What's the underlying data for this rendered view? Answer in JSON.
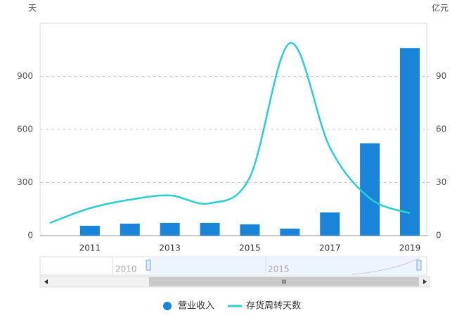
{
  "chart_data": {
    "type": "bar-line",
    "y_label": "天",
    "y2_label": "亿元",
    "categories": [
      null,
      "2011",
      null,
      "2013",
      null,
      "2015",
      null,
      "2017",
      null,
      "2019"
    ],
    "series": [
      {
        "name": "营业收入",
        "type": "bar",
        "axis": "y2",
        "color": "#1984d8",
        "values": [
          null,
          5.6,
          6.8,
          7.2,
          7.2,
          6.4,
          4,
          13.1,
          52.2,
          106
        ]
      },
      {
        "name": "存货周转天数",
        "type": "line",
        "color": "#2ccfcf",
        "values": [
          72,
          155,
          203,
          227,
          183,
          331,
          1088,
          498,
          211,
          127
        ]
      }
    ],
    "ylim": [
      0,
      1200
    ],
    "yticks": [
      0,
      300,
      600,
      900
    ],
    "y2lim": [
      0,
      120
    ],
    "y2ticks": [
      0,
      30,
      60,
      90
    ],
    "grid": true,
    "slider": {
      "labels": [
        "2010",
        "2015"
      ],
      "grip": "III"
    }
  }
}
